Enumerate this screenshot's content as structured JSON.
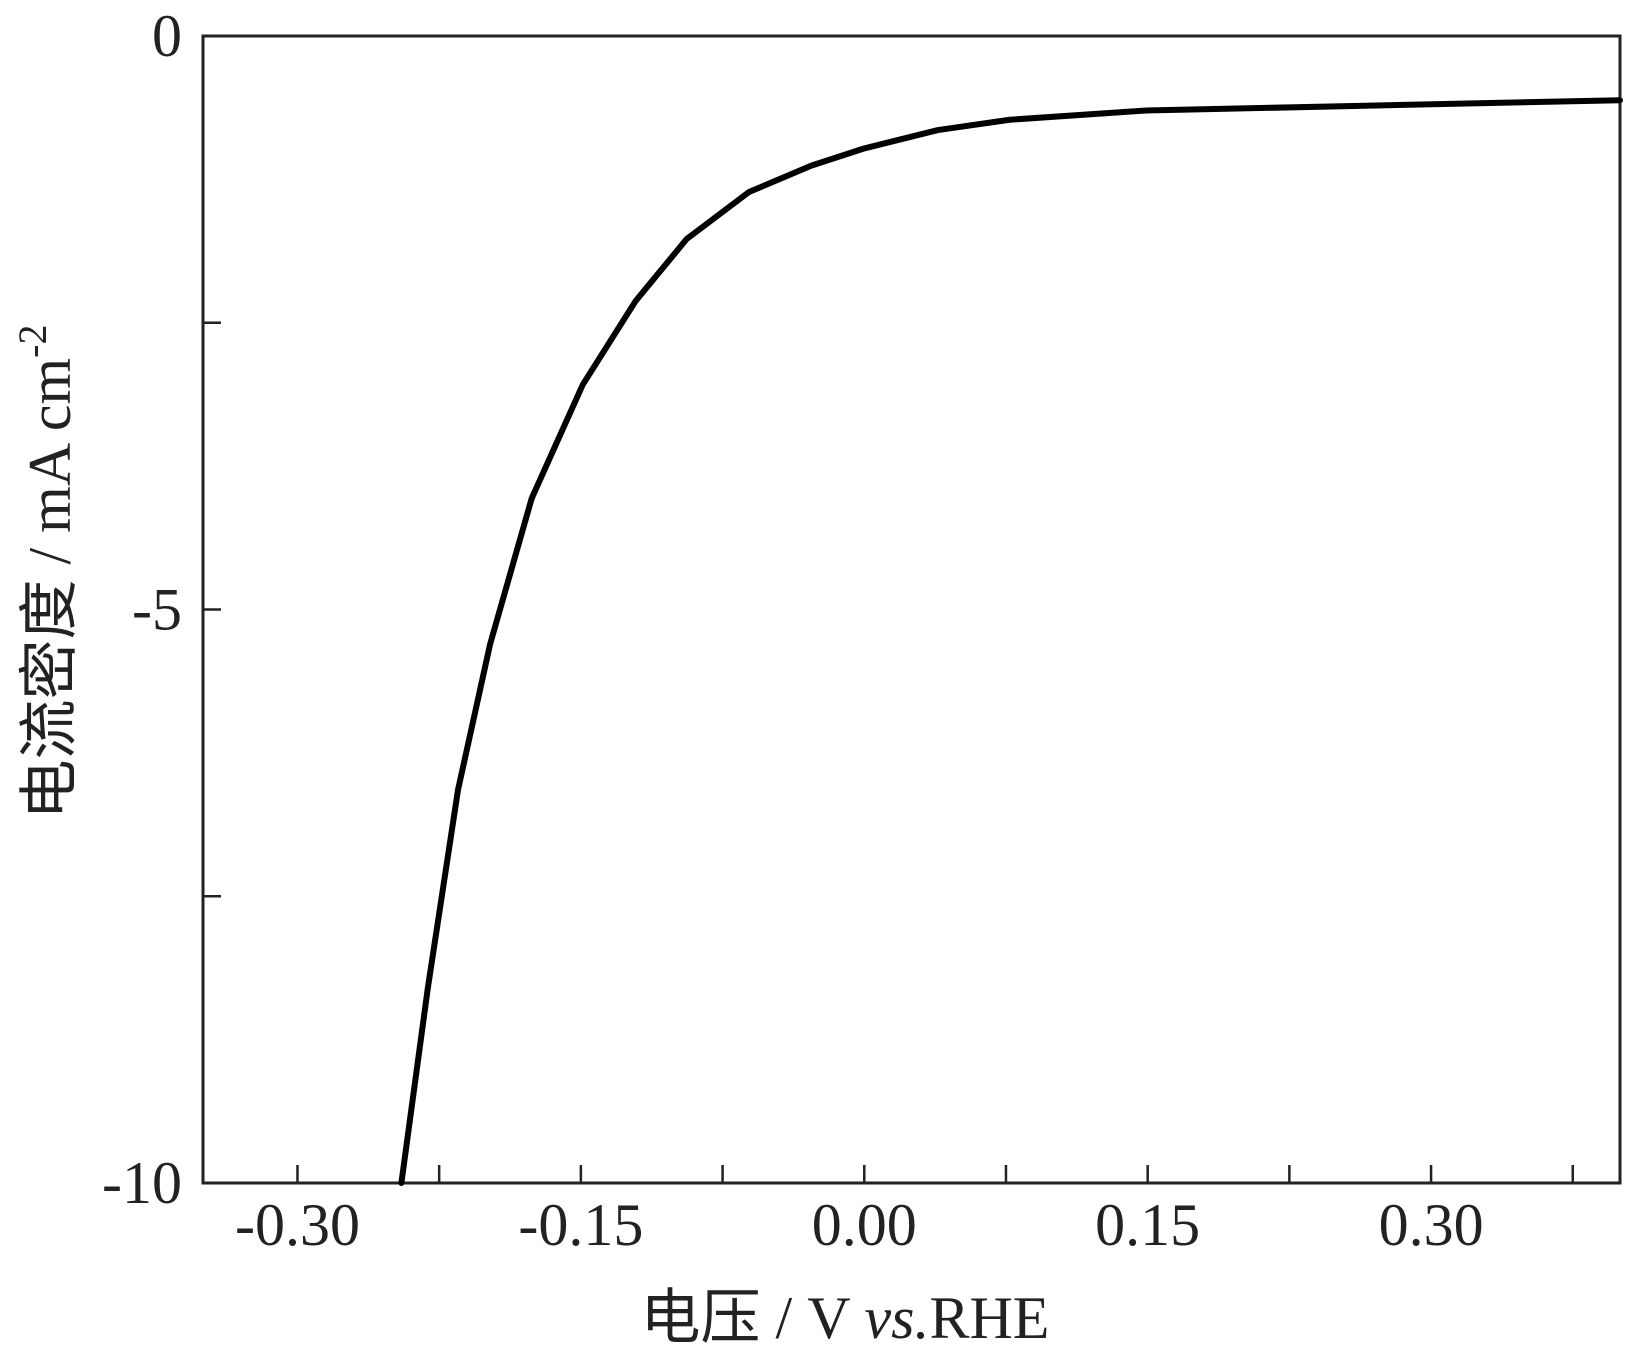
{
  "chart_data": {
    "type": "line",
    "x_label": [
      "电压 / V ",
      "vs.",
      "RHE"
    ],
    "y_label": [
      "电流密度 / mA cm",
      "-2"
    ],
    "xlim": [
      -0.35,
      0.4
    ],
    "ylim": [
      -10,
      0
    ],
    "xticks": [
      {
        "value": -0.3,
        "label": "-0.30"
      },
      -0.15,
      {
        "value": 0,
        "label": "0.00"
      },
      0.15,
      {
        "value": 0.3,
        "label": "0.30"
      }
    ],
    "xminor_ticks": [
      -0.225,
      -0.075,
      0.075,
      0.225,
      0.375
    ],
    "yticks": [
      0,
      -5,
      -10
    ],
    "yminor_ticks": [
      -2.5,
      -7.5
    ],
    "series": [
      {
        "color": "#000000",
        "x": [
          -0.245,
          -0.231,
          -0.215,
          -0.198,
          -0.176,
          -0.149,
          -0.121,
          -0.094,
          -0.061,
          -0.028,
          0,
          0.039,
          0.077,
          0.149,
          0.259,
          0.4
        ],
        "values": [
          -10,
          -8.3,
          -6.57,
          -5.3,
          -4.03,
          -3.04,
          -2.31,
          -1.77,
          -1.36,
          -1.13,
          -0.98,
          -0.82,
          -0.73,
          -0.65,
          -0.61,
          -0.56
        ]
      }
    ]
  }
}
